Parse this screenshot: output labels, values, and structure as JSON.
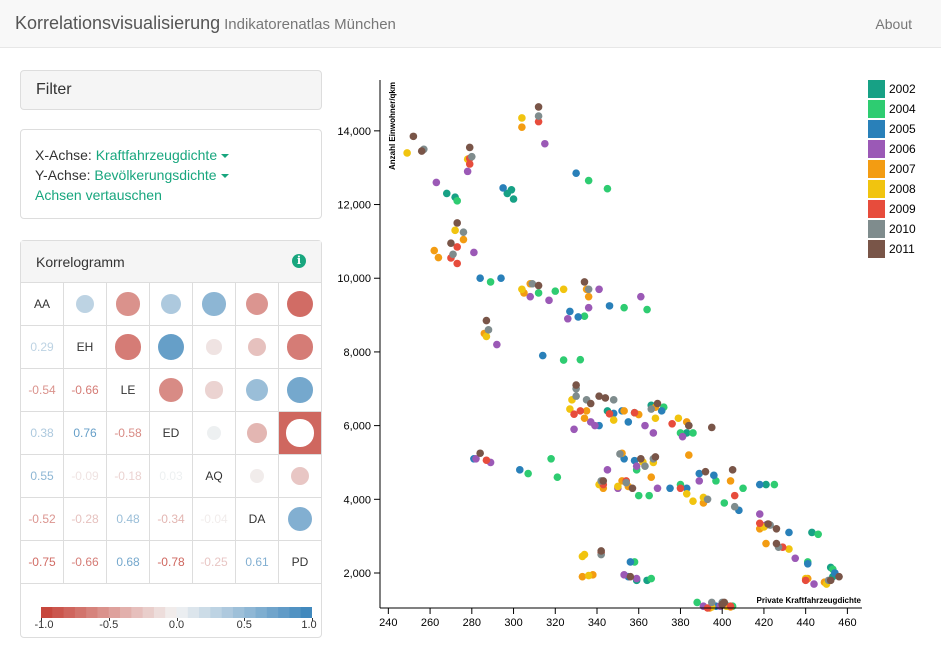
{
  "navbar": {
    "title": "Korrelationsvisualisierung",
    "subtitle": "Indikatorenatlas München",
    "about": "About"
  },
  "filter": {
    "title": "Filter"
  },
  "axes_panel": {
    "x_label": "X-Achse:",
    "x_value": "Kraftfahrzeugdichte",
    "y_label": "Y-Achse:",
    "y_value": "Bevölkerungsdichte",
    "swap": "Achsen vertauschen"
  },
  "correlogram": {
    "title": "Korrelogramm",
    "info_icon": "info-icon",
    "labels": [
      "AA",
      "EH",
      "LE",
      "ED",
      "AQ",
      "DA",
      "PD"
    ],
    "values": [
      [
        1,
        0.29,
        -0.54,
        0.38,
        0.55,
        -0.52,
        -0.75
      ],
      [
        0.29,
        1,
        -0.66,
        0.76,
        -0.09,
        -0.28,
        -0.66
      ],
      [
        -0.54,
        -0.66,
        1,
        -0.58,
        -0.18,
        0.48,
        0.68
      ],
      [
        0.38,
        0.76,
        -0.58,
        1,
        0.03,
        -0.34,
        -0.78
      ],
      [
        0.55,
        -0.09,
        -0.18,
        0.03,
        1,
        -0.04,
        -0.25
      ],
      [
        -0.52,
        -0.28,
        0.48,
        -0.34,
        -0.04,
        1,
        0.61
      ],
      [
        -0.75,
        -0.66,
        0.68,
        -0.78,
        -0.25,
        0.61,
        1
      ]
    ],
    "lower_labels": [
      [
        "0.29"
      ],
      [
        "-0.54",
        "-0.66"
      ],
      [
        "0.38",
        "0.76",
        "-0.58"
      ],
      [
        "0.55",
        "-0.09",
        "-0.18",
        "0.03"
      ],
      [
        "-0.52",
        "-0.28",
        "0.48",
        "-0.34",
        "-0.04"
      ],
      [
        "-0.75",
        "-0.66",
        "0.68",
        "-0.78",
        "-0.25",
        "0.61"
      ]
    ],
    "legend_ticks": [
      "-1.0",
      "-0.5",
      "0.0",
      "0.5",
      "1.0"
    ],
    "colors": {
      "neg": "#c53f35",
      "pos": "#3a84bb"
    }
  },
  "chart_data": {
    "type": "scatter",
    "xlabel": "Private Kraftfahrzeugdichte",
    "ylabel": "Anzahl Einwohner/qkm",
    "xlim": [
      236,
      467
    ],
    "ylim": [
      1050,
      15380
    ],
    "xticks": [
      "240",
      "260",
      "280",
      "300",
      "320",
      "340",
      "360",
      "380",
      "400",
      "420",
      "440",
      "460"
    ],
    "yticks": [
      "2,000",
      "4,000",
      "6,000",
      "8,000",
      "10,000",
      "12,000",
      "14,000"
    ],
    "series": [
      {
        "name": "2002",
        "color": "#17a185",
        "points": [
          [
            299,
            12400
          ],
          [
            297,
            12300
          ],
          [
            300,
            12150
          ],
          [
            272,
            12200
          ],
          [
            268,
            12300
          ],
          [
            345,
            6400
          ],
          [
            358,
            6350
          ],
          [
            366,
            6550
          ],
          [
            383,
            5800
          ],
          [
            421,
            4400
          ],
          [
            443,
            3100
          ],
          [
            452,
            2150
          ],
          [
            453,
            1900
          ],
          [
            359,
            1800
          ],
          [
            364,
            1800
          ],
          [
            403,
            1100
          ]
        ]
      },
      {
        "name": "2004",
        "color": "#2ecc71",
        "points": [
          [
            336,
            12650
          ],
          [
            345,
            12430
          ],
          [
            312,
            9600
          ],
          [
            320,
            9650
          ],
          [
            353,
            9200
          ],
          [
            364,
            9150
          ],
          [
            289,
            9900
          ],
          [
            273,
            12100
          ],
          [
            324,
            7780
          ],
          [
            332,
            7790
          ],
          [
            334,
            8970
          ],
          [
            372,
            6500
          ],
          [
            380,
            5800
          ],
          [
            386,
            5800
          ],
          [
            397,
            4500
          ],
          [
            410,
            4300
          ],
          [
            425,
            4400
          ],
          [
            318,
            5100
          ],
          [
            307,
            4700
          ],
          [
            321,
            4600
          ],
          [
            359,
            4800
          ],
          [
            360,
            4100
          ],
          [
            365,
            4100
          ],
          [
            380,
            4400
          ],
          [
            401,
            3900
          ],
          [
            446,
            3050
          ],
          [
            441,
            2300
          ],
          [
            453,
            2100
          ],
          [
            358,
            2300
          ],
          [
            366,
            1850
          ],
          [
            388,
            1200
          ],
          [
            405,
            1100
          ]
        ]
      },
      {
        "name": "2005",
        "color": "#2980b9",
        "points": [
          [
            330,
            12850
          ],
          [
            295,
            12450
          ],
          [
            284,
            10000
          ],
          [
            327,
            9100
          ],
          [
            346,
            9250
          ],
          [
            294,
            10000
          ],
          [
            314,
            7900
          ],
          [
            331,
            8950
          ],
          [
            348,
            6330
          ],
          [
            352,
            6400
          ],
          [
            355,
            6100
          ],
          [
            371,
            6400
          ],
          [
            341,
            6000
          ],
          [
            353,
            5100
          ],
          [
            358,
            5050
          ],
          [
            389,
            4700
          ],
          [
            396,
            4650
          ],
          [
            418,
            4400
          ],
          [
            303,
            4800
          ],
          [
            281,
            5100
          ],
          [
            375,
            4300
          ],
          [
            383,
            4300
          ],
          [
            408,
            3700
          ],
          [
            432,
            3100
          ],
          [
            441,
            2250
          ],
          [
            454,
            2000
          ],
          [
            356,
            2300
          ],
          [
            355,
            1900
          ],
          [
            397,
            1100
          ],
          [
            400,
            1150
          ]
        ]
      },
      {
        "name": "2006",
        "color": "#9b59b6",
        "points": [
          [
            315,
            13650
          ],
          [
            263,
            12600
          ],
          [
            278,
            12900
          ],
          [
            281,
            10700
          ],
          [
            308,
            9500
          ],
          [
            317,
            9400
          ],
          [
            361,
            9500
          ],
          [
            341,
            9700
          ],
          [
            292,
            8200
          ],
          [
            326,
            8900
          ],
          [
            336,
            9200
          ],
          [
            339,
            6000
          ],
          [
            329,
            5900
          ],
          [
            337,
            6100
          ],
          [
            363,
            6000
          ],
          [
            367,
            5800
          ],
          [
            381,
            5700
          ],
          [
            289,
            5000
          ],
          [
            282,
            5100
          ],
          [
            345,
            4800
          ],
          [
            359,
            4900
          ],
          [
            350,
            4300
          ],
          [
            369,
            4300
          ],
          [
            389,
            4500
          ],
          [
            418,
            3600
          ],
          [
            421,
            3300
          ],
          [
            435,
            2400
          ],
          [
            444,
            1700
          ],
          [
            353,
            1950
          ],
          [
            359,
            1850
          ],
          [
            391,
            1100
          ],
          [
            399,
            1100
          ]
        ]
      },
      {
        "name": "2007",
        "color": "#f39c12",
        "points": [
          [
            304,
            14100
          ],
          [
            262,
            10750
          ],
          [
            264,
            10560
          ],
          [
            276,
            11050
          ],
          [
            305,
            9600
          ],
          [
            308,
            9850
          ],
          [
            336,
            9500
          ],
          [
            335,
            9700
          ],
          [
            286,
            8500
          ],
          [
            334,
            6200
          ],
          [
            335,
            6400
          ],
          [
            353,
            6400
          ],
          [
            368,
            6500
          ],
          [
            360,
            6300
          ],
          [
            383,
            6100
          ],
          [
            352,
            5250
          ],
          [
            384,
            5200
          ],
          [
            343,
            4300
          ],
          [
            352,
            4500
          ],
          [
            355,
            4350
          ],
          [
            366,
            4600
          ],
          [
            391,
            3900
          ],
          [
            404,
            4500
          ],
          [
            418,
            3200
          ],
          [
            421,
            2800
          ],
          [
            441,
            1850
          ],
          [
            449,
            1750
          ],
          [
            333,
            1900
          ],
          [
            338,
            1950
          ],
          [
            394,
            1050
          ],
          [
            404,
            1080
          ]
        ]
      },
      {
        "name": "2008",
        "color": "#f1c40f",
        "points": [
          [
            304,
            14350
          ],
          [
            249,
            13400
          ],
          [
            278,
            13230
          ],
          [
            272,
            11300
          ],
          [
            287,
            8420
          ],
          [
            304,
            9700
          ],
          [
            324,
            9700
          ],
          [
            328,
            6700
          ],
          [
            327,
            6450
          ],
          [
            348,
            6150
          ],
          [
            368,
            6200
          ],
          [
            379,
            6200
          ],
          [
            362,
            5010
          ],
          [
            367,
            5000
          ],
          [
            341,
            4400
          ],
          [
            350,
            4350
          ],
          [
            383,
            4150
          ],
          [
            386,
            3950
          ],
          [
            391,
            4050
          ],
          [
            420,
            3250
          ],
          [
            432,
            2650
          ],
          [
            450,
            1700
          ],
          [
            440,
            1850
          ],
          [
            333,
            2450
          ],
          [
            334,
            2500
          ],
          [
            336,
            1930
          ],
          [
            402,
            1100
          ],
          [
            395,
            1080
          ]
        ]
      },
      {
        "name": "2009",
        "color": "#e74c3c",
        "points": [
          [
            312,
            14250
          ],
          [
            279,
            13250
          ],
          [
            279,
            13100
          ],
          [
            273,
            10400
          ],
          [
            270,
            10550
          ],
          [
            273,
            10850
          ],
          [
            329,
            6310
          ],
          [
            332,
            6400
          ],
          [
            346,
            6320
          ],
          [
            358,
            6350
          ],
          [
            376,
            6050
          ],
          [
            287,
            5060
          ],
          [
            343,
            4400
          ],
          [
            354,
            4500
          ],
          [
            380,
            4300
          ],
          [
            406,
            4100
          ],
          [
            418,
            3350
          ],
          [
            429,
            2700
          ],
          [
            440,
            1800
          ],
          [
            342,
            2550
          ],
          [
            400,
            1130
          ],
          [
            404,
            1100
          ],
          [
            393,
            1050
          ]
        ]
      },
      {
        "name": "2010",
        "color": "#7f8c8d",
        "points": [
          [
            312,
            14400
          ],
          [
            257,
            13500
          ],
          [
            280,
            13300
          ],
          [
            271,
            10650
          ],
          [
            276,
            11250
          ],
          [
            309,
            9850
          ],
          [
            336,
            9700
          ],
          [
            288,
            8600
          ],
          [
            330,
            6800
          ],
          [
            335,
            6700
          ],
          [
            330,
            7000
          ],
          [
            348,
            6700
          ],
          [
            366,
            6450
          ],
          [
            384,
            6000
          ],
          [
            351,
            5230
          ],
          [
            363,
            4900
          ],
          [
            367,
            5100
          ],
          [
            342,
            4500
          ],
          [
            354,
            4450
          ],
          [
            393,
            4000
          ],
          [
            406,
            3800
          ],
          [
            423,
            3300
          ],
          [
            427,
            2700
          ],
          [
            451,
            1800
          ],
          [
            342,
            2500
          ],
          [
            395,
            1200
          ],
          [
            400,
            1200
          ]
        ]
      },
      {
        "name": "2011",
        "color": "#795548",
        "points": [
          [
            252,
            13850
          ],
          [
            279,
            13550
          ],
          [
            312,
            14650
          ],
          [
            256,
            13450
          ],
          [
            273,
            11500
          ],
          [
            270,
            10950
          ],
          [
            287,
            8850
          ],
          [
            312,
            9800
          ],
          [
            334,
            9900
          ],
          [
            330,
            7100
          ],
          [
            337,
            6600
          ],
          [
            341,
            6800
          ],
          [
            344,
            6750
          ],
          [
            369,
            6600
          ],
          [
            384,
            6000
          ],
          [
            395,
            5950
          ],
          [
            361,
            5100
          ],
          [
            368,
            5150
          ],
          [
            284,
            5250
          ],
          [
            343,
            4500
          ],
          [
            357,
            4300
          ],
          [
            392,
            4750
          ],
          [
            405,
            4800
          ],
          [
            422,
            3330
          ],
          [
            426,
            3200
          ],
          [
            426,
            2800
          ],
          [
            452,
            1800
          ],
          [
            456,
            1900
          ],
          [
            342,
            2600
          ],
          [
            356,
            1900
          ],
          [
            400,
            1150
          ],
          [
            401,
            1200
          ]
        ]
      }
    ]
  }
}
